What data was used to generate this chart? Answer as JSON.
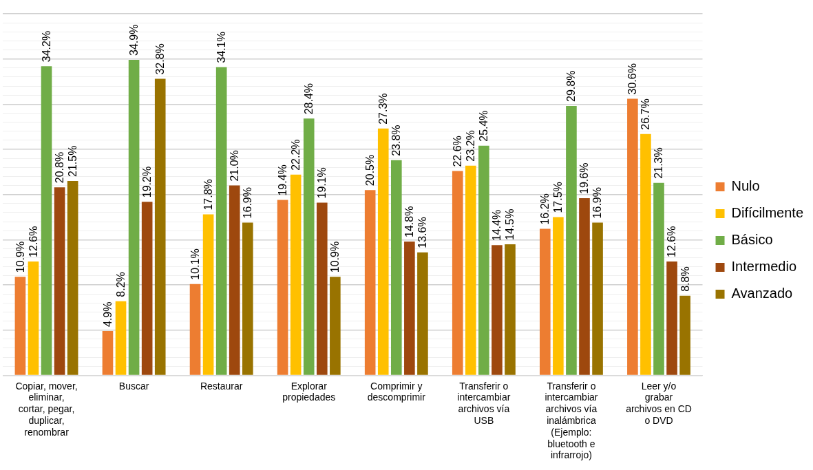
{
  "chart_data": {
    "type": "bar",
    "categories": [
      "Copiar, mover, eliminar, cortar, pegar, duplicar, renombrar",
      "Buscar",
      "Restaurar",
      "Explorar propiedades",
      "Comprimir y descomprimir",
      "Transferir o intercambiar archivos vía USB",
      "Transferir o intercambiar archivos vía inalámbrica (Ejemplo: bluetooth e infrarrojo)",
      "Leer y/o grabar archivos en CD o DVD"
    ],
    "series": [
      {
        "name": "Nulo",
        "color": "#ed7d31",
        "values": [
          10.9,
          4.9,
          10.1,
          19.4,
          20.5,
          22.6,
          16.2,
          30.6
        ],
        "value_labels": [
          "10.9%",
          "4.9%",
          "10.1%",
          "19.4%",
          "20.5%",
          "22.6%",
          "16.2%",
          "30.6%"
        ]
      },
      {
        "name": "Difícilmente",
        "color": "#ffc000",
        "values": [
          12.6,
          8.2,
          17.8,
          22.2,
          27.3,
          23.2,
          17.5,
          26.7
        ],
        "value_labels": [
          "12.6%",
          "8.2%",
          "17.8%",
          "22.2%",
          "27.3%",
          "23.2%",
          "17.5%",
          "26.7%"
        ]
      },
      {
        "name": "Básico",
        "color": "#70ad47",
        "values": [
          34.2,
          34.9,
          34.1,
          28.4,
          23.8,
          25.4,
          29.8,
          21.3
        ],
        "value_labels": [
          "34.2%",
          "34.9%",
          "34.1%",
          "28.4%",
          "23.8%",
          "25.4%",
          "29.8%",
          "21.3%"
        ]
      },
      {
        "name": "Intermedio",
        "color": "#9e480e",
        "values": [
          20.8,
          19.2,
          21.0,
          19.1,
          14.8,
          14.4,
          19.6,
          12.6
        ],
        "value_labels": [
          "20.8%",
          "19.2%",
          "21.0%",
          "19.1%",
          "14.8%",
          "14.4%",
          "19.6%",
          "12.6%"
        ]
      },
      {
        "name": "Avanzado",
        "color": "#997300",
        "values": [
          21.5,
          32.8,
          16.9,
          10.9,
          13.6,
          14.5,
          16.9,
          8.8
        ],
        "value_labels": [
          "21.5%",
          "32.8%",
          "16.9%",
          "10.9%",
          "13.6%",
          "14.5%",
          "16.9%",
          "8.8%"
        ]
      }
    ],
    "ylim": [
      0,
      40
    ],
    "yticks": [
      {
        "value": 0,
        "label": null
      },
      {
        "value": 1,
        "label": null
      },
      {
        "value": 2,
        "label": null
      },
      {
        "value": 3,
        "label": null
      },
      {
        "value": 4,
        "label": null
      },
      {
        "value": 5,
        "label": null
      },
      {
        "value": 6,
        "label": null
      },
      {
        "value": 7,
        "label": null
      },
      {
        "value": 8,
        "label": null
      },
      {
        "value": 9,
        "label": null
      },
      {
        "value": 10,
        "label": null
      },
      {
        "value": 11,
        "label": null
      },
      {
        "value": 12,
        "label": null
      },
      {
        "value": 13,
        "label": null
      },
      {
        "value": 14,
        "label": null
      },
      {
        "value": 15,
        "label": null
      },
      {
        "value": 16,
        "label": null
      },
      {
        "value": 17,
        "label": null
      },
      {
        "value": 18,
        "label": null
      },
      {
        "value": 19,
        "label": null
      },
      {
        "value": 20,
        "label": null
      },
      {
        "value": 21,
        "label": null
      },
      {
        "value": 22,
        "label": null
      },
      {
        "value": 23,
        "label": null
      },
      {
        "value": 24,
        "label": null
      },
      {
        "value": 25,
        "label": null
      },
      {
        "value": 26,
        "label": null
      },
      {
        "value": 27,
        "label": null
      },
      {
        "value": 28,
        "label": null
      },
      {
        "value": 29,
        "label": null
      },
      {
        "value": 30,
        "label": null
      },
      {
        "value": 31,
        "label": null
      },
      {
        "value": 32,
        "label": null
      },
      {
        "value": 33,
        "label": null
      },
      {
        "value": 34,
        "label": null
      },
      {
        "value": 35,
        "label": null
      },
      {
        "value": 36,
        "label": null
      },
      {
        "value": 37,
        "label": null
      },
      {
        "value": 38,
        "label": null
      },
      {
        "value": 39,
        "label": null
      },
      {
        "value": 40,
        "label": null
      }
    ],
    "grid": "y",
    "legend": "right",
    "tick_labels": "x"
  }
}
